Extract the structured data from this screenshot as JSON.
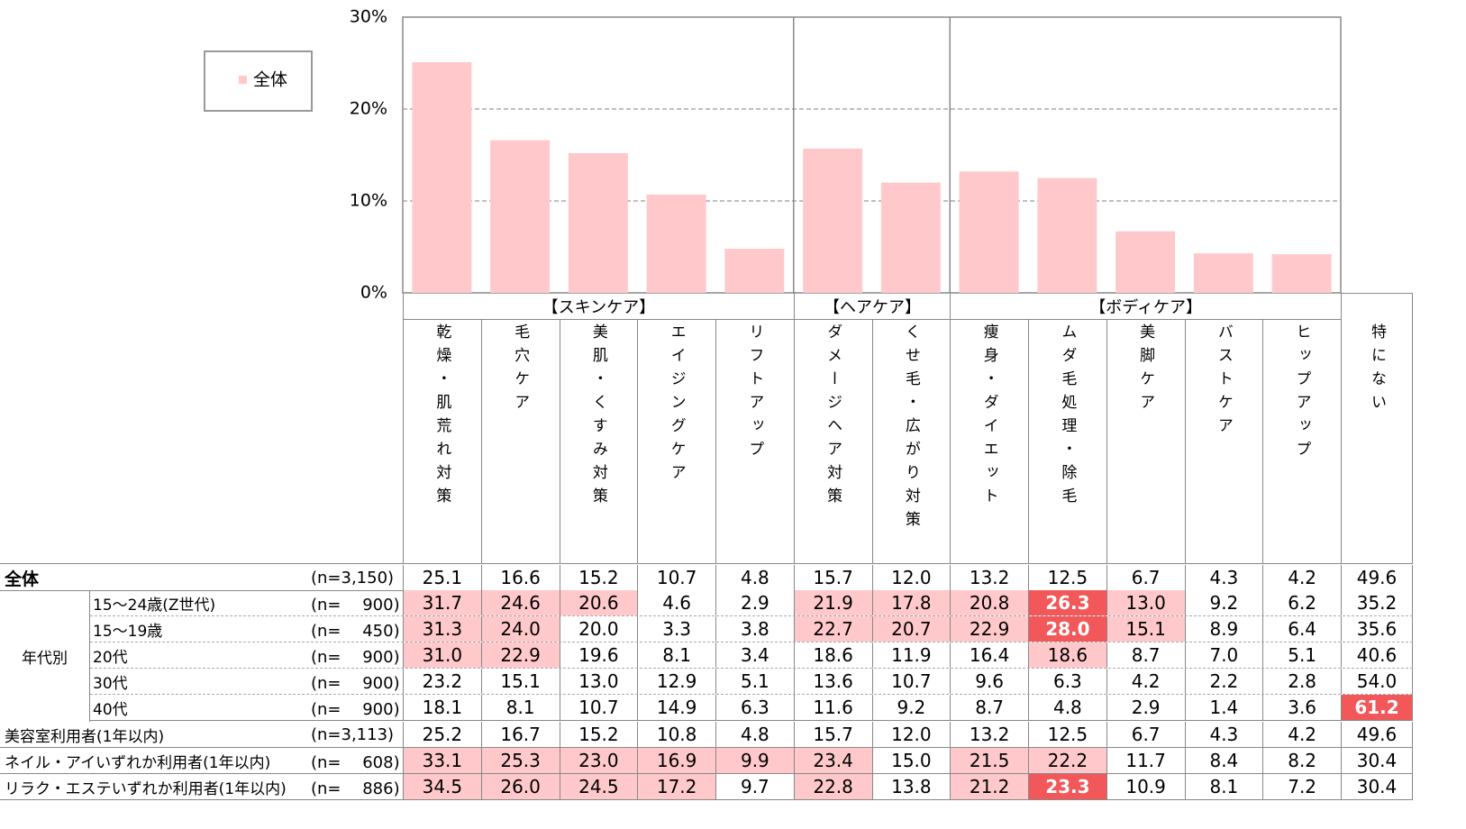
{
  "chart_data": {
    "type": "bar",
    "categories": [
      "乾燥・肌荒れ対策",
      "毛穴ケア",
      "美肌・くすみ対策",
      "エイジングケア",
      "リフトアップ",
      "ダメージヘア対策",
      "くせ毛・広がり対策",
      "痩身・ダイエット",
      "ムダ毛処理・除毛",
      "美脚ケア",
      "バストケア",
      "ヒップアップ"
    ],
    "series": [
      {
        "name": "全体",
        "color": "#ffc9cb",
        "values": [
          25.1,
          16.6,
          15.2,
          10.7,
          4.8,
          15.7,
          12.0,
          13.2,
          12.5,
          6.7,
          4.3,
          4.2
        ]
      }
    ],
    "ylim": [
      0,
      30
    ],
    "yticks": [
      {
        "value": 0,
        "label": "0%"
      },
      {
        "value": 10,
        "label": "10%"
      },
      {
        "value": 20,
        "label": "20%"
      },
      {
        "value": 30,
        "label": "30%"
      }
    ],
    "grid": true
  },
  "table": {
    "groups": [
      {
        "label": "【スキンケア】",
        "span": 5
      },
      {
        "label": "【ヘアケア】",
        "span": 2
      },
      {
        "label": "【ボディケア】",
        "span": 5
      }
    ],
    "last_column": "特にない",
    "row_groups": [
      {
        "label": "年代別",
        "first": 1,
        "count": 5
      }
    ],
    "highlight": {
      "light": 5,
      "strong": 10,
      "light_color": "#ffc9cb",
      "strong_color": "#f2575a"
    },
    "rows": [
      {
        "label": "全体",
        "n": "(n=3,150)",
        "values": [
          "25.1",
          "16.6",
          "15.2",
          "10.7",
          "4.8",
          "15.7",
          "12.0",
          "13.2",
          "12.5",
          "6.7",
          "4.3",
          "4.2",
          "49.6"
        ]
      },
      {
        "label": "15～24歳(Z世代)",
        "n": "(n=　 900)",
        "values": [
          "31.7",
          "24.6",
          "20.6",
          "4.6",
          "2.9",
          "21.9",
          "17.8",
          "20.8",
          "26.3",
          "13.0",
          "9.2",
          "6.2",
          "35.2"
        ]
      },
      {
        "label": "15～19歳",
        "n": "(n=　 450)",
        "values": [
          "31.3",
          "24.0",
          "20.0",
          "3.3",
          "3.8",
          "22.7",
          "20.7",
          "22.9",
          "28.0",
          "15.1",
          "8.9",
          "6.4",
          "35.6"
        ]
      },
      {
        "label": "20代",
        "n": "(n=　 900)",
        "values": [
          "31.0",
          "22.9",
          "19.6",
          "8.1",
          "3.4",
          "18.6",
          "11.9",
          "16.4",
          "18.6",
          "8.7",
          "7.0",
          "5.1",
          "40.6"
        ]
      },
      {
        "label": "30代",
        "n": "(n=　 900)",
        "values": [
          "23.2",
          "15.1",
          "13.0",
          "12.9",
          "5.1",
          "13.6",
          "10.7",
          "9.6",
          "6.3",
          "4.2",
          "2.2",
          "2.8",
          "54.0"
        ]
      },
      {
        "label": "40代",
        "n": "(n=　 900)",
        "values": [
          "18.1",
          "8.1",
          "10.7",
          "14.9",
          "6.3",
          "11.6",
          "9.2",
          "8.7",
          "4.8",
          "2.9",
          "1.4",
          "3.6",
          "61.2"
        ]
      },
      {
        "label": "美容室利用者(1年以内)",
        "n": "(n=3,113)",
        "values": [
          "25.2",
          "16.7",
          "15.2",
          "10.8",
          "4.8",
          "15.7",
          "12.0",
          "13.2",
          "12.5",
          "6.7",
          "4.3",
          "4.2",
          "49.6"
        ]
      },
      {
        "label": "ネイル・アイいずれか利用者(1年以内)",
        "n": "(n=　 608)",
        "values": [
          "33.1",
          "25.3",
          "23.0",
          "16.9",
          "9.9",
          "23.4",
          "15.0",
          "21.5",
          "22.2",
          "11.7",
          "8.4",
          "8.2",
          "30.4"
        ]
      },
      {
        "label": "リラク・エステいずれか利用者(1年以内)",
        "n": "(n=　 886)",
        "values": [
          "34.5",
          "26.0",
          "24.5",
          "17.2",
          "9.7",
          "22.8",
          "13.8",
          "21.2",
          "23.3",
          "10.9",
          "8.1",
          "7.2",
          "30.4"
        ]
      }
    ]
  }
}
